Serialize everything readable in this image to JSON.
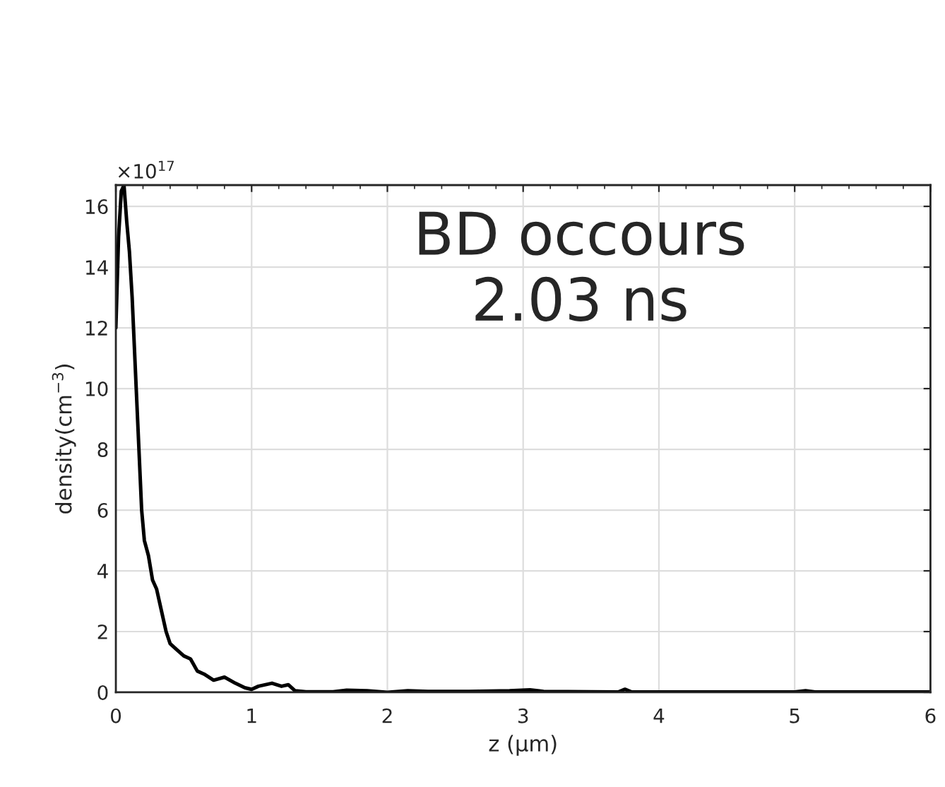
{
  "chart_data": {
    "type": "line",
    "xlabel": "z (μm)",
    "ylabel": "density(cm$^{−3}$)",
    "annotations": [
      "×10$^{17}$",
      "BD occours\n2.03 ns"
    ],
    "xlim": [
      0,
      6
    ],
    "xticks": [
      0,
      1,
      2,
      3,
      4,
      5,
      6
    ],
    "ylim": [
      0,
      16.7
    ],
    "yticks": [
      0,
      2,
      4,
      6,
      8,
      10,
      12,
      14,
      16
    ],
    "grid": true,
    "marker": "none",
    "line_style": "solid",
    "series": [
      {
        "color": "#000000",
        "x": [
          0,
          0.02,
          0.04,
          0.06,
          0.08,
          0.1,
          0.12,
          0.15,
          0.17,
          0.19,
          0.21,
          0.24,
          0.27,
          0.3,
          0.33,
          0.37,
          0.4,
          0.45,
          0.5,
          0.55,
          0.6,
          0.65,
          0.72,
          0.8,
          0.88,
          0.95,
          1.0,
          1.05,
          1.15,
          1.22,
          1.27,
          1.32,
          1.4,
          1.6,
          1.7,
          1.85,
          2.0,
          2.15,
          2.3,
          2.6,
          2.9,
          3.05,
          3.15,
          3.5,
          3.7,
          3.75,
          3.8,
          4.0,
          5.0,
          5.08,
          5.15,
          6.0
        ],
        "values": [
          12,
          15,
          16.5,
          16.7,
          15.5,
          14.5,
          13,
          10,
          8,
          6,
          5,
          4.5,
          3.7,
          3.4,
          2.8,
          2,
          1.6,
          1.4,
          1.2,
          1.1,
          0.7,
          0.6,
          0.4,
          0.5,
          0.3,
          0.15,
          0.1,
          0.2,
          0.3,
          0.2,
          0.25,
          0.05,
          0.02,
          0.02,
          0.07,
          0.05,
          0,
          0.05,
          0.03,
          0.03,
          0.05,
          0.08,
          0.03,
          0.02,
          0.01,
          0.1,
          0.01,
          0.01,
          0.01,
          0.05,
          0.01,
          0.01
        ]
      }
    ]
  }
}
